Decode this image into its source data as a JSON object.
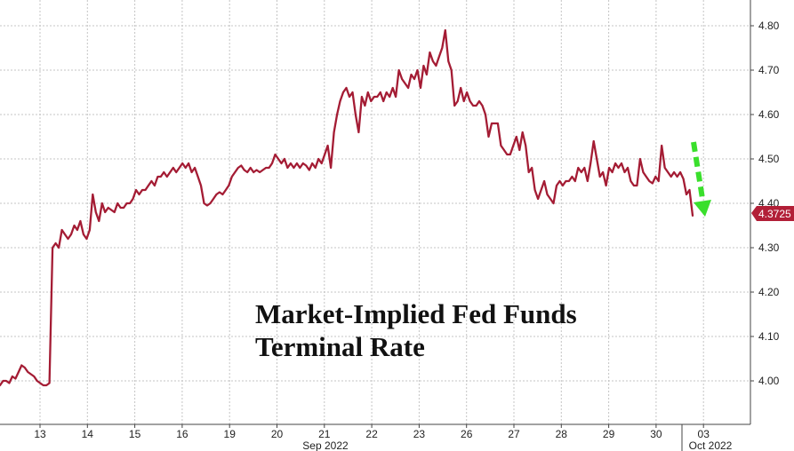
{
  "chart_data": {
    "type": "line",
    "title_line1": "Market-Implied Fed Funds",
    "title_line2": "Terminal Rate",
    "x_ticks": [
      "13",
      "14",
      "15",
      "16",
      "19",
      "20",
      "21",
      "22",
      "23",
      "26",
      "27",
      "28",
      "29",
      "30",
      "03"
    ],
    "month_labels": [
      "Sep 2022",
      "Oct 2022"
    ],
    "y_ticks": [
      "4.00",
      "4.10",
      "4.20",
      "4.30",
      "4.40",
      "4.50",
      "4.60",
      "4.70",
      "4.80"
    ],
    "ylim": [
      3.9,
      4.84
    ],
    "y_axis_side": "right",
    "grid": true,
    "last_value_label": "4.3725",
    "series": [
      {
        "color": "#a41c34",
        "values": [
          3.99,
          4.0,
          4.0,
          3.995,
          4.01,
          4.005,
          4.02,
          4.035,
          4.03,
          4.02,
          4.015,
          4.01,
          4.0,
          3.995,
          3.99,
          3.99,
          3.995,
          4.3,
          4.31,
          4.3,
          4.34,
          4.33,
          4.32,
          4.33,
          4.35,
          4.34,
          4.36,
          4.33,
          4.32,
          4.34,
          4.42,
          4.38,
          4.36,
          4.4,
          4.38,
          4.39,
          4.385,
          4.38,
          4.4,
          4.39,
          4.39,
          4.4,
          4.4,
          4.41,
          4.43,
          4.42,
          4.43,
          4.43,
          4.44,
          4.45,
          4.44,
          4.46,
          4.46,
          4.47,
          4.46,
          4.47,
          4.48,
          4.47,
          4.48,
          4.49,
          4.48,
          4.49,
          4.47,
          4.48,
          4.46,
          4.44,
          4.4,
          4.395,
          4.4,
          4.41,
          4.42,
          4.425,
          4.42,
          4.43,
          4.44,
          4.46,
          4.47,
          4.48,
          4.485,
          4.475,
          4.47,
          4.48,
          4.47,
          4.475,
          4.47,
          4.475,
          4.48,
          4.48,
          4.49,
          4.51,
          4.5,
          4.49,
          4.5,
          4.48,
          4.49,
          4.48,
          4.49,
          4.48,
          4.49,
          4.485,
          4.475,
          4.49,
          4.48,
          4.5,
          4.49,
          4.51,
          4.53,
          4.48,
          4.56,
          4.6,
          4.63,
          4.65,
          4.66,
          4.64,
          4.65,
          4.6,
          4.56,
          4.64,
          4.62,
          4.65,
          4.63,
          4.64,
          4.64,
          4.65,
          4.63,
          4.65,
          4.64,
          4.66,
          4.64,
          4.7,
          4.68,
          4.67,
          4.66,
          4.69,
          4.68,
          4.7,
          4.66,
          4.71,
          4.69,
          4.74,
          4.72,
          4.71,
          4.73,
          4.75,
          4.79,
          4.72,
          4.7,
          4.62,
          4.63,
          4.66,
          4.63,
          4.65,
          4.63,
          4.62,
          4.62,
          4.63,
          4.62,
          4.6,
          4.55,
          4.58,
          4.58,
          4.58,
          4.53,
          4.52,
          4.51,
          4.51,
          4.53,
          4.55,
          4.52,
          4.56,
          4.53,
          4.47,
          4.48,
          4.43,
          4.41,
          4.43,
          4.45,
          4.42,
          4.41,
          4.4,
          4.44,
          4.45,
          4.44,
          4.45,
          4.45,
          4.46,
          4.45,
          4.48,
          4.47,
          4.48,
          4.45,
          4.49,
          4.54,
          4.5,
          4.46,
          4.47,
          4.44,
          4.48,
          4.47,
          4.49,
          4.48,
          4.49,
          4.47,
          4.48,
          4.45,
          4.44,
          4.44,
          4.5,
          4.47,
          4.46,
          4.45,
          4.445,
          4.46,
          4.45,
          4.53,
          4.48,
          4.47,
          4.46,
          4.47,
          4.46,
          4.47,
          4.455,
          4.42,
          4.43,
          4.3725
        ]
      }
    ]
  },
  "colors": {
    "line": "#a41c34",
    "grid": "#c4c4c4",
    "arrow": "#3adf2c",
    "last_value_tag": "#b21f37"
  }
}
